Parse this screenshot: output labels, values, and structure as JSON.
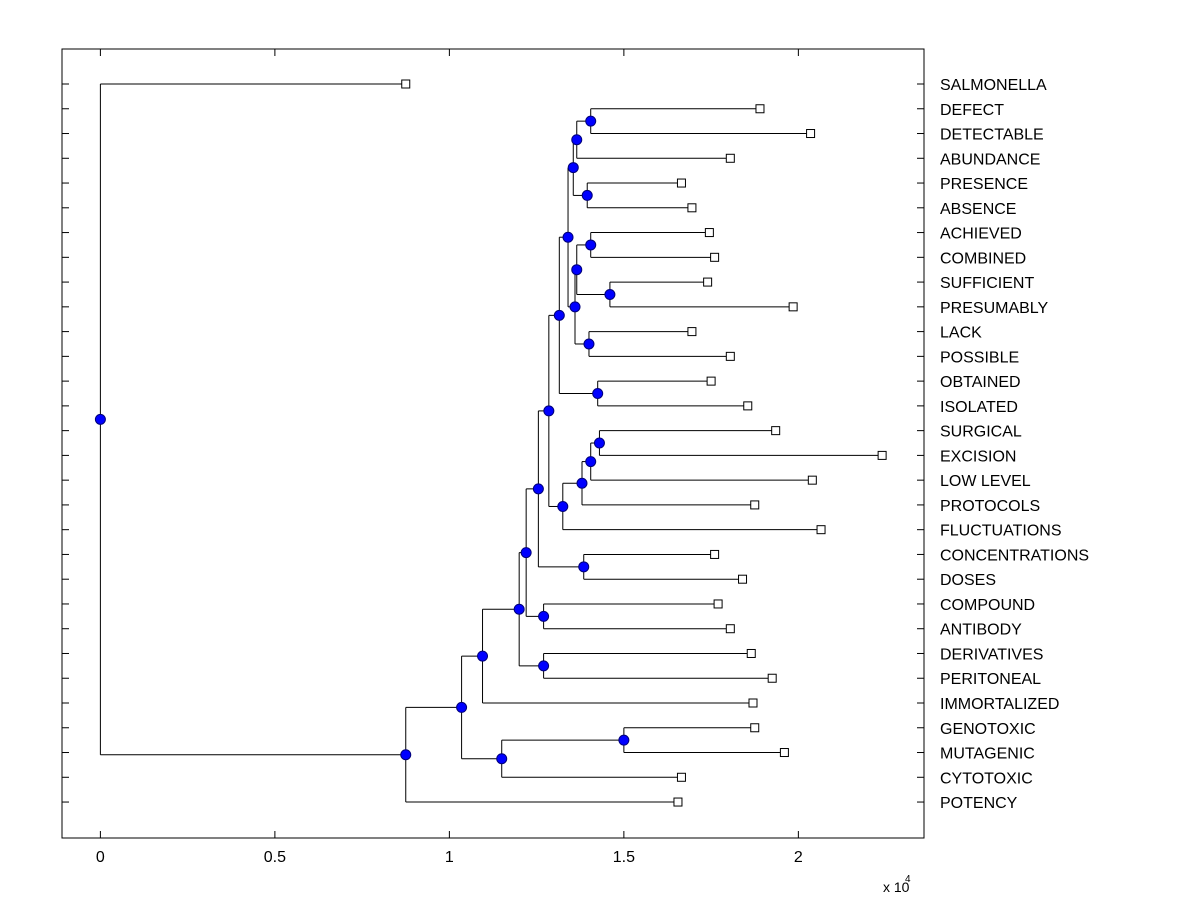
{
  "chart_data": {
    "type": "dendrogram",
    "orientation": "horizontal",
    "xlim": [
      -0.11,
      2.36
    ],
    "x_multiplier_label": "x 10",
    "x_multiplier_exponent": "4",
    "x_ticks": [
      {
        "value": 0,
        "label": "0"
      },
      {
        "value": 0.5,
        "label": "0.5"
      },
      {
        "value": 1,
        "label": "1"
      },
      {
        "value": 1.5,
        "label": "1.5"
      },
      {
        "value": 2,
        "label": "2"
      }
    ],
    "leaves": [
      {
        "label": "SALMONELLA",
        "x": 0.875
      },
      {
        "label": "DEFECT",
        "x": 1.89
      },
      {
        "label": "DETECTABLE",
        "x": 2.035
      },
      {
        "label": "ABUNDANCE",
        "x": 1.805
      },
      {
        "label": "PRESENCE",
        "x": 1.665
      },
      {
        "label": "ABSENCE",
        "x": 1.695
      },
      {
        "label": "ACHIEVED",
        "x": 1.745
      },
      {
        "label": "COMBINED",
        "x": 1.76
      },
      {
        "label": "SUFFICIENT",
        "x": 1.74
      },
      {
        "label": "PRESUMABLY",
        "x": 1.985
      },
      {
        "label": "LACK",
        "x": 1.695
      },
      {
        "label": "POSSIBLE",
        "x": 1.805
      },
      {
        "label": "OBTAINED",
        "x": 1.75
      },
      {
        "label": "ISOLATED",
        "x": 1.855
      },
      {
        "label": "SURGICAL",
        "x": 1.935
      },
      {
        "label": "EXCISION",
        "x": 2.24
      },
      {
        "label": "LOW LEVEL",
        "x": 2.04
      },
      {
        "label": "PROTOCOLS",
        "x": 1.875
      },
      {
        "label": "FLUCTUATIONS",
        "x": 2.065
      },
      {
        "label": "CONCENTRATIONS",
        "x": 1.76
      },
      {
        "label": "DOSES",
        "x": 1.84
      },
      {
        "label": "COMPOUND",
        "x": 1.77
      },
      {
        "label": "ANTIBODY",
        "x": 1.805
      },
      {
        "label": "DERIVATIVES",
        "x": 1.865
      },
      {
        "label": "PERITONEAL",
        "x": 1.925
      },
      {
        "label": "IMMORTALIZED",
        "x": 1.87
      },
      {
        "label": "GENOTOXIC",
        "x": 1.875
      },
      {
        "label": "MUTAGENIC",
        "x": 1.96
      },
      {
        "label": "CYTOTOXIC",
        "x": 1.665
      },
      {
        "label": "POTENCY",
        "x": 1.655
      }
    ],
    "merges": [
      {
        "id": "m1",
        "x": 1.405,
        "children": [
          1,
          2
        ]
      },
      {
        "id": "m2",
        "x": 1.365,
        "children": [
          "m1",
          3
        ]
      },
      {
        "id": "m3",
        "x": 1.395,
        "children": [
          4,
          5
        ]
      },
      {
        "id": "m4",
        "x": 1.355,
        "children": [
          "m2",
          "m3"
        ]
      },
      {
        "id": "m5",
        "x": 1.405,
        "children": [
          6,
          7
        ]
      },
      {
        "id": "m6",
        "x": 1.46,
        "children": [
          8,
          9
        ]
      },
      {
        "id": "m7",
        "x": 1.365,
        "children": [
          "m5",
          "m6"
        ]
      },
      {
        "id": "m8",
        "x": 1.4,
        "children": [
          10,
          11
        ]
      },
      {
        "id": "m9",
        "x": 1.36,
        "children": [
          "m7",
          "m8"
        ]
      },
      {
        "id": "m10",
        "x": 1.34,
        "children": [
          "m4",
          "m9"
        ]
      },
      {
        "id": "m11",
        "x": 1.425,
        "children": [
          12,
          13
        ]
      },
      {
        "id": "m12",
        "x": 1.315,
        "children": [
          "m10",
          "m11"
        ]
      },
      {
        "id": "m13",
        "x": 1.43,
        "children": [
          14,
          15
        ]
      },
      {
        "id": "m14",
        "x": 1.405,
        "children": [
          "m13",
          16
        ]
      },
      {
        "id": "m15",
        "x": 1.38,
        "children": [
          "m14",
          17
        ]
      },
      {
        "id": "m16",
        "x": 1.325,
        "children": [
          "m15",
          18
        ]
      },
      {
        "id": "m17",
        "x": 1.285,
        "children": [
          "m12",
          "m16"
        ]
      },
      {
        "id": "m18",
        "x": 1.385,
        "children": [
          19,
          20
        ]
      },
      {
        "id": "m19",
        "x": 1.255,
        "children": [
          "m17",
          "m18"
        ]
      },
      {
        "id": "m20",
        "x": 1.27,
        "children": [
          21,
          22
        ]
      },
      {
        "id": "m21",
        "x": 1.22,
        "children": [
          "m19",
          "m20"
        ]
      },
      {
        "id": "m22",
        "x": 1.27,
        "children": [
          23,
          24
        ]
      },
      {
        "id": "m23",
        "x": 1.2,
        "children": [
          "m21",
          "m22"
        ]
      },
      {
        "id": "m24",
        "x": 1.095,
        "children": [
          "m23",
          25
        ]
      },
      {
        "id": "m25",
        "x": 1.5,
        "children": [
          26,
          27
        ]
      },
      {
        "id": "m26",
        "x": 1.15,
        "children": [
          "m25",
          28
        ]
      },
      {
        "id": "m27",
        "x": 1.035,
        "children": [
          "m24",
          "m26"
        ]
      },
      {
        "id": "m28",
        "x": 0.875,
        "children": [
          "m27",
          29
        ]
      },
      {
        "id": "m29",
        "x": 0.0,
        "children": [
          0,
          "m28"
        ]
      }
    ],
    "colors": {
      "node_fill": "#0000ff",
      "node_stroke": "#00007a",
      "line": "#000000"
    }
  }
}
